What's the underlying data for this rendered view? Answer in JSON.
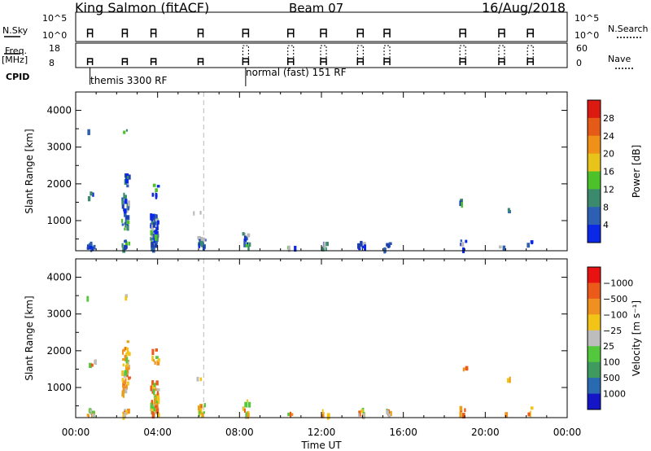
{
  "header": {
    "station": "King Salmon (fitACF)",
    "beam": "Beam 07",
    "date": "16/Aug/2018"
  },
  "status": {
    "nsky_label": "N.Sky",
    "freq_label": "Freq.",
    "freq_unit": "[MHz]",
    "cpid_label": "CPID",
    "nsearch_label": "N.Search",
    "nave_label": "Nave",
    "nsky_ticks": [
      "10^5",
      "10^0"
    ],
    "freq_ticks": [
      "18",
      "8"
    ],
    "nsearch_ticks": [
      "10^5",
      "10^0"
    ],
    "nave_ticks": [
      "60",
      "0"
    ],
    "cpid_notes": [
      {
        "text": "themis 3300 RF",
        "time_h": 0.7
      },
      {
        "text": "normal (fast) 151 RF",
        "time_h": 8.3
      }
    ]
  },
  "chart_data": [
    {
      "type": "heatmap",
      "panel": "power",
      "xlabel": "",
      "ylabel": "Slant Range [km]",
      "xlim": [
        0,
        24
      ],
      "ylim": [
        180,
        4500
      ],
      "yticks": [
        1000,
        2000,
        3000,
        4000
      ],
      "colorbar": {
        "label": "Power [dB]",
        "ticks": [
          "4",
          "8",
          "12",
          "16",
          "20",
          "24",
          "28"
        ],
        "colors": [
          "#0a28e6",
          "#2d5fb4",
          "#3b8a6e",
          "#4cc12a",
          "#e8c41b",
          "#f19018",
          "#e55a16",
          "#dd1a12"
        ]
      }
    },
    {
      "type": "heatmap",
      "panel": "velocity",
      "xlabel": "Time UT",
      "ylabel": "Slant Range [km]",
      "xlim": [
        0,
        24
      ],
      "ylim": [
        180,
        4500
      ],
      "yticks": [
        1000,
        2000,
        3000,
        4000
      ],
      "xticks": [
        "00:00",
        "04:00",
        "08:00",
        "12:00",
        "16:00",
        "20:00",
        "00:00"
      ],
      "colorbar": {
        "label": "Velocity [m s⁻¹]",
        "ticks": [
          "1000",
          "500",
          "100",
          "25",
          "−25",
          "−100",
          "−500",
          "−1000"
        ],
        "colors": [
          "#1515c8",
          "#2a6ab0",
          "#3e9a5e",
          "#53c83c",
          "#bdbdbd",
          "#f2c418",
          "#f09020",
          "#ec5a1a",
          "#e81212"
        ]
      }
    }
  ],
  "palette": {
    "scatter_dark": "#0a1a9a",
    "frame": "#000000",
    "dashed": "#bbbbbb"
  }
}
